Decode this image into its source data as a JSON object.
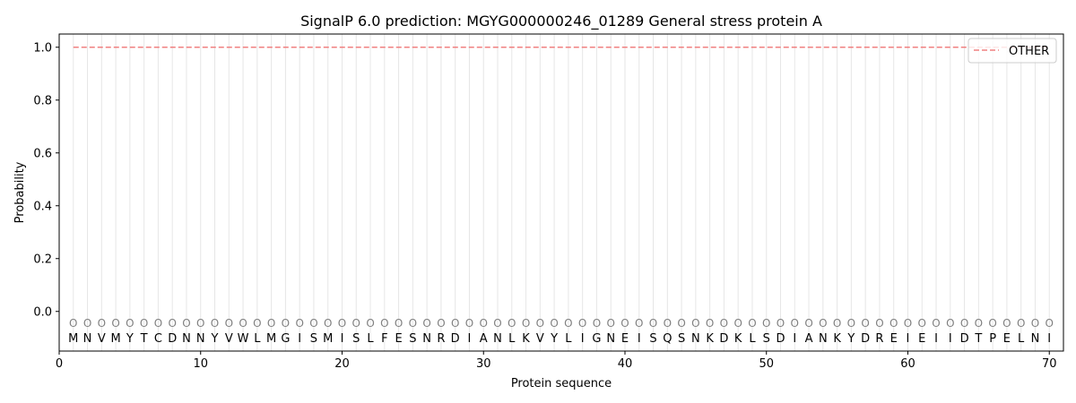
{
  "chart_data": {
    "type": "line",
    "title": "SignalP 6.0 prediction: MGYG000000246_01289 General stress protein A",
    "xlabel": "Protein sequence",
    "ylabel": "Probability",
    "xlim": [
      0,
      71
    ],
    "ylim": [
      -0.15,
      1.05
    ],
    "xticks": [
      0,
      10,
      20,
      30,
      40,
      50,
      60,
      70
    ],
    "yticks": [
      0.0,
      0.2,
      0.4,
      0.6,
      0.8,
      1.0
    ],
    "ytick_labels": [
      "0.0",
      "0.2",
      "0.4",
      "0.6",
      "0.8",
      "1.0"
    ],
    "grid": "vertical lines at each residue position",
    "legend_position": "top-right",
    "series": [
      {
        "name": "OTHER",
        "color": "#f08080",
        "style": "dashed",
        "x": [
          1,
          70
        ],
        "y": [
          1.0,
          1.0
        ]
      }
    ],
    "sequence": [
      "M",
      "N",
      "V",
      "M",
      "Y",
      "T",
      "C",
      "D",
      "N",
      "N",
      "Y",
      "V",
      "W",
      "L",
      "M",
      "G",
      "I",
      "S",
      "M",
      "I",
      "S",
      "L",
      "F",
      "E",
      "S",
      "N",
      "R",
      "D",
      "I",
      "A",
      "N",
      "L",
      "K",
      "V",
      "Y",
      "L",
      "I",
      "G",
      "N",
      "E",
      "I",
      "S",
      "Q",
      "S",
      "N",
      "K",
      "D",
      "K",
      "L",
      "S",
      "D",
      "I",
      "A",
      "N",
      "K",
      "Y",
      "D",
      "R",
      "E",
      "I",
      "E",
      "I",
      "I",
      "D",
      "T",
      "P",
      "E",
      "L",
      "N",
      "I"
    ],
    "predicted_labels": [
      "O",
      "O",
      "O",
      "O",
      "O",
      "O",
      "O",
      "O",
      "O",
      "O",
      "O",
      "O",
      "O",
      "O",
      "O",
      "O",
      "O",
      "O",
      "O",
      "O",
      "O",
      "O",
      "O",
      "O",
      "O",
      "O",
      "O",
      "O",
      "O",
      "O",
      "O",
      "O",
      "O",
      "O",
      "O",
      "O",
      "O",
      "O",
      "O",
      "O",
      "O",
      "O",
      "O",
      "O",
      "O",
      "O",
      "O",
      "O",
      "O",
      "O",
      "O",
      "O",
      "O",
      "O",
      "O",
      "O",
      "O",
      "O",
      "O",
      "O",
      "O",
      "O",
      "O",
      "O",
      "O",
      "O",
      "O",
      "O",
      "O",
      "O"
    ]
  }
}
